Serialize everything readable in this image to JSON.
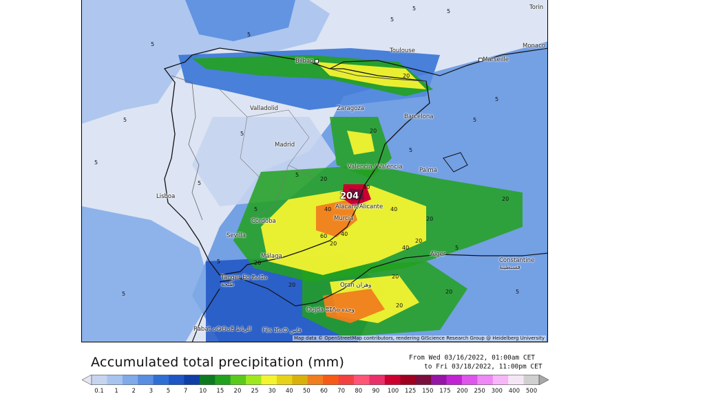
{
  "map": {
    "title": "Accumulated total precipitation (mm)",
    "date_from": "From Wed 03/16/2022, 01:00am CET",
    "date_to": "to Fri 03/18/2022, 11:00pm CET",
    "attribution": "Map data © OpenStreetMap contributors, rendering GIScience Research Group @ Heidelberg University",
    "max_value_label": "204",
    "cities": [
      {
        "name": "Bilbao",
        "id": "bilbao"
      },
      {
        "name": "Toulouse",
        "id": "toulouse"
      },
      {
        "name": "Marseille",
        "id": "marseille"
      },
      {
        "name": "Monaco",
        "id": "monaco"
      },
      {
        "name": "Torin",
        "id": "torino"
      },
      {
        "name": "Valladolid",
        "id": "valladolid"
      },
      {
        "name": "Zaragoza",
        "id": "zaragoza"
      },
      {
        "name": "Barcelona",
        "id": "barcelona"
      },
      {
        "name": "Madrid",
        "id": "madrid"
      },
      {
        "name": "Valencia / València",
        "id": "valencia"
      },
      {
        "name": "Palma",
        "id": "palma"
      },
      {
        "name": "Lisboa",
        "id": "lisboa"
      },
      {
        "name": "Alacant/Alicante",
        "id": "alicante"
      },
      {
        "name": "Murcia",
        "id": "murcia"
      },
      {
        "name": "Córdoba",
        "id": "cordoba"
      },
      {
        "name": "Sevilla",
        "id": "sevilla"
      },
      {
        "name": "Málaga",
        "id": "malaga"
      },
      {
        "name": "Alger",
        "id": "alger"
      },
      {
        "name": "Constantine قسنطينة",
        "id": "constantine"
      },
      {
        "name": "Tanger Eo ⵟⴰⵏⵊⴰ طنجة",
        "id": "tanger"
      },
      {
        "name": "Oran وهران",
        "id": "oran"
      },
      {
        "name": "Oujda ⵓⵊⴷⴰ وجدة",
        "id": "oujda"
      },
      {
        "name": "Rabat ⴰⵕⴱⴰⵟ الرباط",
        "id": "rabat"
      },
      {
        "name": "Fès ⴼⴰⵙ فاس",
        "id": "fes"
      }
    ],
    "contours": [
      "5",
      "5",
      "5",
      "5",
      "5",
      "5",
      "5",
      "5",
      "5",
      "5",
      "5",
      "5",
      "5",
      "5",
      "5",
      "5",
      "5",
      "20",
      "20",
      "20",
      "20",
      "20",
      "20",
      "20",
      "20",
      "20",
      "20",
      "20",
      "20",
      "40",
      "40",
      "40",
      "40",
      "40",
      "60",
      "5"
    ]
  },
  "legend": {
    "colors": [
      "#e6e6f2",
      "#c6d4f0",
      "#a8c4ee",
      "#80aae8",
      "#5a8ee0",
      "#2f6fd4",
      "#1f55c4",
      "#0f3ea6",
      "#0d7a22",
      "#22a11e",
      "#5ac91c",
      "#9fe81e",
      "#f3f330",
      "#e6d21a",
      "#d9b10c",
      "#f07d1e",
      "#f55a17",
      "#f34141",
      "#ff5577",
      "#e8306a",
      "#cc0030",
      "#a00020",
      "#7a0e3c",
      "#9614a6",
      "#c024d2",
      "#dd55ea",
      "#ee88f4",
      "#f7b6f8",
      "#f5e6f5",
      "#d0d0d0",
      "#a8a8a8"
    ],
    "labels": [
      "0.1",
      "1",
      "2",
      "3",
      "5",
      "7",
      "10",
      "15",
      "20",
      "25",
      "30",
      "40",
      "50",
      "60",
      "70",
      "80",
      "90",
      "100",
      "125",
      "150",
      "175",
      "200",
      "250",
      "300",
      "400",
      "500"
    ]
  }
}
